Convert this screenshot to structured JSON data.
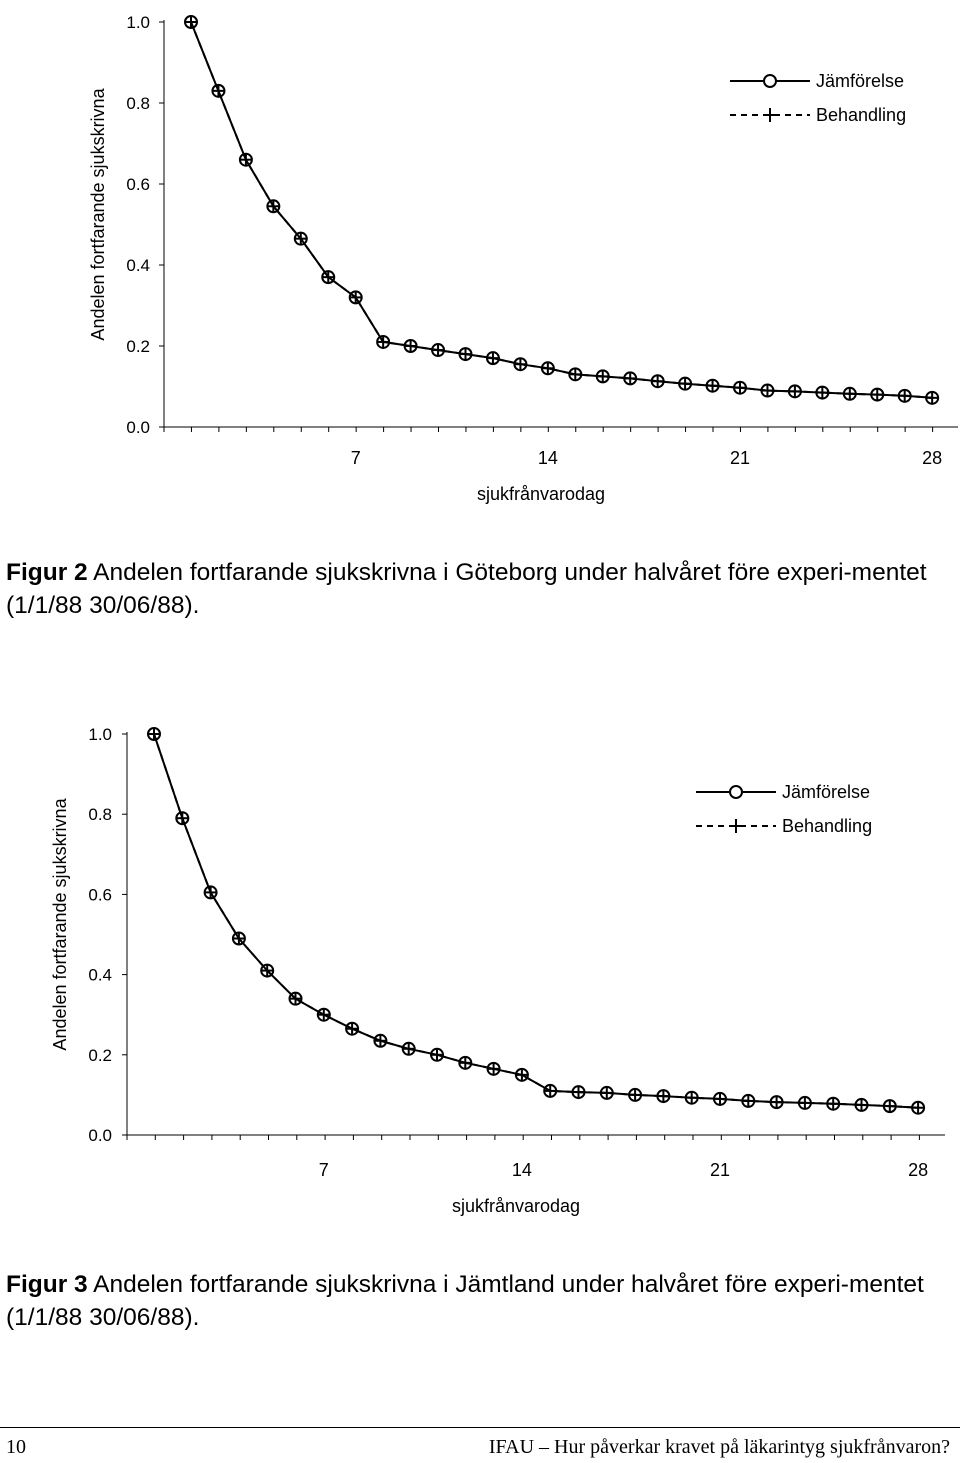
{
  "charts": [
    {
      "chart_data": {
        "type": "line",
        "ylabel": "Andelen fortfarande sjukskrivna",
        "xlabel": "sjukfrånvarodag",
        "ylim": [
          0.0,
          1.0
        ],
        "y_ticks": [
          "0.0",
          "0.2",
          "0.4",
          "0.6",
          "0.8",
          "1.0"
        ],
        "x_ticks": [
          "7",
          "14",
          "21",
          "28"
        ],
        "legend_placement": "top-right",
        "x": [
          1,
          2,
          3,
          4,
          5,
          6,
          7,
          8,
          9,
          10,
          11,
          12,
          13,
          14,
          15,
          16,
          17,
          18,
          19,
          20,
          21,
          22,
          23,
          24,
          25,
          26,
          27,
          28
        ],
        "series": [
          {
            "name": "Jämförelse",
            "style": "solid",
            "marker": "circle",
            "values": [
              1.0,
              0.83,
              0.66,
              0.545,
              0.465,
              0.37,
              0.32,
              0.21,
              0.2,
              0.19,
              0.18,
              0.17,
              0.155,
              0.145,
              0.13,
              0.125,
              0.12,
              0.113,
              0.107,
              0.102,
              0.097,
              0.09,
              0.088,
              0.085,
              0.082,
              0.08,
              0.077,
              0.072
            ]
          },
          {
            "name": "Behandling",
            "style": "dashed",
            "marker": "plus",
            "values": [
              1.0,
              0.83,
              0.66,
              0.545,
              0.465,
              0.37,
              0.32,
              0.21,
              0.2,
              0.19,
              0.18,
              0.17,
              0.155,
              0.145,
              0.13,
              0.125,
              0.12,
              0.113,
              0.107,
              0.102,
              0.097,
              0.09,
              0.088,
              0.085,
              0.082,
              0.08,
              0.077,
              0.072
            ]
          }
        ]
      }
    },
    {
      "chart_data": {
        "type": "line",
        "ylabel": "Andelen fortfarande sjukskrivna",
        "xlabel": "sjukfrånvarodag",
        "ylim": [
          0.0,
          1.0
        ],
        "y_ticks": [
          "0.0",
          "0.2",
          "0.4",
          "0.6",
          "0.8",
          "1.0"
        ],
        "x_ticks": [
          "7",
          "14",
          "21",
          "28"
        ],
        "legend_placement": "top-right",
        "x": [
          1,
          2,
          3,
          4,
          5,
          6,
          7,
          8,
          9,
          10,
          11,
          12,
          13,
          14,
          15,
          16,
          17,
          18,
          19,
          20,
          21,
          22,
          23,
          24,
          25,
          26,
          27,
          28
        ],
        "series": [
          {
            "name": "Jämförelse",
            "style": "solid",
            "marker": "circle",
            "values": [
              1.0,
              0.79,
              0.605,
              0.49,
              0.41,
              0.34,
              0.3,
              0.265,
              0.235,
              0.215,
              0.2,
              0.18,
              0.165,
              0.15,
              0.11,
              0.107,
              0.105,
              0.1,
              0.097,
              0.093,
              0.09,
              0.085,
              0.082,
              0.08,
              0.078,
              0.075,
              0.072,
              0.068
            ]
          },
          {
            "name": "Behandling",
            "style": "dashed",
            "marker": "plus",
            "values": [
              1.0,
              0.79,
              0.605,
              0.49,
              0.41,
              0.34,
              0.3,
              0.265,
              0.235,
              0.215,
              0.2,
              0.18,
              0.165,
              0.15,
              0.11,
              0.107,
              0.105,
              0.1,
              0.097,
              0.093,
              0.09,
              0.085,
              0.082,
              0.08,
              0.078,
              0.075,
              0.072,
              0.068
            ]
          }
        ]
      }
    }
  ],
  "captions": [
    {
      "label": "Figur 2",
      "text": " Andelen fortfarande sjukskrivna i Göteborg under halvåret före experi-mentet (1/1/88 30/06/88)."
    },
    {
      "label": "Figur 3",
      "text": " Andelen fortfarande sjukskrivna i Jämtland under halvåret före experi-mentet (1/1/88 30/06/88)."
    }
  ],
  "footer": {
    "page_number": "10",
    "title": "IFAU – Hur påverkar kravet på läkarintyg sjukfrånvaron?"
  }
}
